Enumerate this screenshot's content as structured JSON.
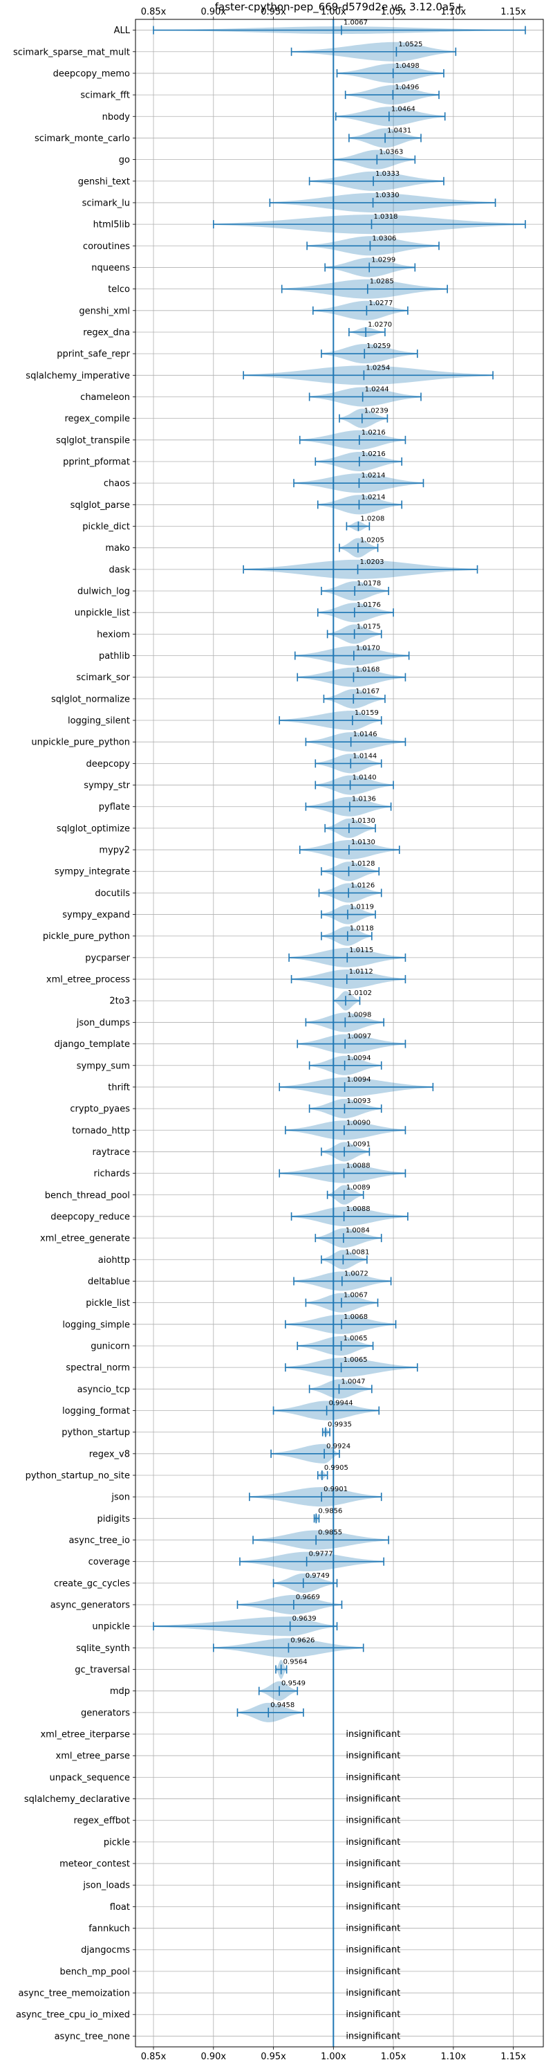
{
  "chart_data": {
    "type": "violin",
    "title": "faster-cpython-pep_669-d579d2e vs. 3.12.0a5+",
    "xlim": [
      0.835,
      1.175
    ],
    "x_ticks": [
      0.85,
      0.9,
      0.95,
      1.0,
      1.05,
      1.1,
      1.15
    ],
    "x_tick_labels": [
      "0.85x",
      "0.90x",
      "0.95x",
      "1.00x",
      "1.05x",
      "1.10x",
      "1.15x"
    ],
    "reference_line": 1.0,
    "grid": true,
    "violin_color": "#1f77b4",
    "insignificant_label": "insignificant",
    "benchmarks": [
      {
        "name": "ALL",
        "label": "1.0067",
        "mean": 1.0067,
        "min": 0.85,
        "max": 1.16,
        "width": 0.35
      },
      {
        "name": "scimark_sparse_mat_mult",
        "label": "1.0525",
        "mean": 1.0525,
        "min": 0.965,
        "max": 1.102,
        "width": 0.9
      },
      {
        "name": "deepcopy_memo",
        "label": "1.0498",
        "mean": 1.0498,
        "min": 1.003,
        "max": 1.092,
        "width": 0.9
      },
      {
        "name": "scimark_fft",
        "label": "1.0496",
        "mean": 1.0496,
        "min": 1.01,
        "max": 1.088,
        "width": 0.9
      },
      {
        "name": "nbody",
        "label": "1.0464",
        "mean": 1.0464,
        "min": 1.002,
        "max": 1.093,
        "width": 0.9
      },
      {
        "name": "scimark_monte_carlo",
        "label": "1.0431",
        "mean": 1.0431,
        "min": 1.013,
        "max": 1.073,
        "width": 0.9
      },
      {
        "name": "go",
        "label": "1.0363",
        "mean": 1.0363,
        "min": 1.0,
        "max": 1.068,
        "width": 0.9
      },
      {
        "name": "genshi_text",
        "label": "1.0333",
        "mean": 1.0333,
        "min": 0.98,
        "max": 1.092,
        "width": 0.9
      },
      {
        "name": "scimark_lu",
        "label": "1.0330",
        "mean": 1.033,
        "min": 0.947,
        "max": 1.135,
        "width": 0.9
      },
      {
        "name": "html5lib",
        "label": "1.0318",
        "mean": 1.0318,
        "min": 0.9,
        "max": 1.16,
        "width": 0.9
      },
      {
        "name": "coroutines",
        "label": "1.0306",
        "mean": 1.0306,
        "min": 0.978,
        "max": 1.088,
        "width": 0.9
      },
      {
        "name": "nqueens",
        "label": "1.0299",
        "mean": 1.0299,
        "min": 0.993,
        "max": 1.068,
        "width": 0.9
      },
      {
        "name": "telco",
        "label": "1.0285",
        "mean": 1.0285,
        "min": 0.957,
        "max": 1.095,
        "width": 0.9
      },
      {
        "name": "genshi_xml",
        "label": "1.0277",
        "mean": 1.0277,
        "min": 0.983,
        "max": 1.062,
        "width": 0.9
      },
      {
        "name": "regex_dna",
        "label": "1.0270",
        "mean": 1.027,
        "min": 1.013,
        "max": 1.043,
        "width": 0.45
      },
      {
        "name": "pprint_safe_repr",
        "label": "1.0259",
        "mean": 1.0259,
        "min": 0.99,
        "max": 1.07,
        "width": 0.9
      },
      {
        "name": "sqlalchemy_imperative",
        "label": "1.0254",
        "mean": 1.0254,
        "min": 0.925,
        "max": 1.133,
        "width": 0.9
      },
      {
        "name": "chameleon",
        "label": "1.0244",
        "mean": 1.0244,
        "min": 0.98,
        "max": 1.073,
        "width": 0.9
      },
      {
        "name": "regex_compile",
        "label": "1.0239",
        "mean": 1.0239,
        "min": 1.005,
        "max": 1.045,
        "width": 0.9
      },
      {
        "name": "sqlglot_transpile",
        "label": "1.0216",
        "mean": 1.0216,
        "min": 0.972,
        "max": 1.06,
        "width": 0.9
      },
      {
        "name": "pprint_pformat",
        "label": "1.0216",
        "mean": 1.0216,
        "min": 0.985,
        "max": 1.057,
        "width": 0.9
      },
      {
        "name": "chaos",
        "label": "1.0214",
        "mean": 1.0214,
        "min": 0.967,
        "max": 1.075,
        "width": 0.9
      },
      {
        "name": "sqlglot_parse",
        "label": "1.0214",
        "mean": 1.0214,
        "min": 0.987,
        "max": 1.057,
        "width": 0.9
      },
      {
        "name": "pickle_dict",
        "label": "1.0208",
        "mean": 1.0208,
        "min": 1.011,
        "max": 1.03,
        "width": 0.45
      },
      {
        "name": "mako",
        "label": "1.0205",
        "mean": 1.0205,
        "min": 1.005,
        "max": 1.037,
        "width": 0.9
      },
      {
        "name": "dask",
        "label": "1.0203",
        "mean": 1.0203,
        "min": 0.925,
        "max": 1.12,
        "width": 0.9
      },
      {
        "name": "dulwich_log",
        "label": "1.0178",
        "mean": 1.0178,
        "min": 0.99,
        "max": 1.046,
        "width": 0.9
      },
      {
        "name": "unpickle_list",
        "label": "1.0176",
        "mean": 1.0176,
        "min": 0.987,
        "max": 1.05,
        "width": 0.9
      },
      {
        "name": "hexiom",
        "label": "1.0175",
        "mean": 1.0175,
        "min": 0.995,
        "max": 1.04,
        "width": 0.9
      },
      {
        "name": "pathlib",
        "label": "1.0170",
        "mean": 1.017,
        "min": 0.968,
        "max": 1.063,
        "width": 0.9
      },
      {
        "name": "scimark_sor",
        "label": "1.0168",
        "mean": 1.0168,
        "min": 0.97,
        "max": 1.06,
        "width": 0.9
      },
      {
        "name": "sqlglot_normalize",
        "label": "1.0167",
        "mean": 1.0167,
        "min": 0.992,
        "max": 1.043,
        "width": 0.9
      },
      {
        "name": "logging_silent",
        "label": "1.0159",
        "mean": 1.0159,
        "min": 0.955,
        "max": 1.04,
        "width": 0.9
      },
      {
        "name": "unpickle_pure_python",
        "label": "1.0146",
        "mean": 1.0146,
        "min": 0.977,
        "max": 1.06,
        "width": 0.9
      },
      {
        "name": "deepcopy",
        "label": "1.0144",
        "mean": 1.0144,
        "min": 0.985,
        "max": 1.04,
        "width": 0.9
      },
      {
        "name": "sympy_str",
        "label": "1.0140",
        "mean": 1.014,
        "min": 0.985,
        "max": 1.05,
        "width": 0.9
      },
      {
        "name": "pyflate",
        "label": "1.0136",
        "mean": 1.0136,
        "min": 0.977,
        "max": 1.048,
        "width": 0.9
      },
      {
        "name": "sqlglot_optimize",
        "label": "1.0130",
        "mean": 1.013,
        "min": 0.993,
        "max": 1.035,
        "width": 0.9
      },
      {
        "name": "mypy2",
        "label": "1.0130",
        "mean": 1.013,
        "min": 0.972,
        "max": 1.055,
        "width": 0.9
      },
      {
        "name": "sympy_integrate",
        "label": "1.0128",
        "mean": 1.0128,
        "min": 0.99,
        "max": 1.038,
        "width": 0.9
      },
      {
        "name": "docutils",
        "label": "1.0126",
        "mean": 1.0126,
        "min": 0.988,
        "max": 1.04,
        "width": 0.9
      },
      {
        "name": "sympy_expand",
        "label": "1.0119",
        "mean": 1.0119,
        "min": 0.99,
        "max": 1.035,
        "width": 0.9
      },
      {
        "name": "pickle_pure_python",
        "label": "1.0118",
        "mean": 1.0118,
        "min": 0.99,
        "max": 1.032,
        "width": 0.9
      },
      {
        "name": "pycparser",
        "label": "1.0115",
        "mean": 1.0115,
        "min": 0.963,
        "max": 1.06,
        "width": 0.9
      },
      {
        "name": "xml_etree_process",
        "label": "1.0112",
        "mean": 1.0112,
        "min": 0.965,
        "max": 1.06,
        "width": 0.9
      },
      {
        "name": "2to3",
        "label": "1.0102",
        "mean": 1.0102,
        "min": 1.0,
        "max": 1.022,
        "width": 0.9
      },
      {
        "name": "json_dumps",
        "label": "1.0098",
        "mean": 1.0098,
        "min": 0.977,
        "max": 1.042,
        "width": 0.9
      },
      {
        "name": "django_template",
        "label": "1.0097",
        "mean": 1.0097,
        "min": 0.97,
        "max": 1.06,
        "width": 0.9
      },
      {
        "name": "sympy_sum",
        "label": "1.0094",
        "mean": 1.0094,
        "min": 0.98,
        "max": 1.04,
        "width": 0.9
      },
      {
        "name": "thrift",
        "label": "1.0094",
        "mean": 1.0094,
        "min": 0.955,
        "max": 1.083,
        "width": 0.9
      },
      {
        "name": "crypto_pyaes",
        "label": "1.0093",
        "mean": 1.0093,
        "min": 0.98,
        "max": 1.04,
        "width": 0.9
      },
      {
        "name": "tornado_http",
        "label": "1.0090",
        "mean": 1.009,
        "min": 0.96,
        "max": 1.06,
        "width": 0.9
      },
      {
        "name": "raytrace",
        "label": "1.0091",
        "mean": 1.0091,
        "min": 0.99,
        "max": 1.03,
        "width": 0.9
      },
      {
        "name": "richards",
        "label": "1.0088",
        "mean": 1.0088,
        "min": 0.955,
        "max": 1.06,
        "width": 0.9
      },
      {
        "name": "bench_thread_pool",
        "label": "1.0089",
        "mean": 1.0089,
        "min": 0.995,
        "max": 1.025,
        "width": 0.9
      },
      {
        "name": "deepcopy_reduce",
        "label": "1.0088",
        "mean": 1.0088,
        "min": 0.965,
        "max": 1.062,
        "width": 0.9
      },
      {
        "name": "xml_etree_generate",
        "label": "1.0084",
        "mean": 1.0084,
        "min": 0.985,
        "max": 1.04,
        "width": 0.9
      },
      {
        "name": "aiohttp",
        "label": "1.0081",
        "mean": 1.0081,
        "min": 0.99,
        "max": 1.028,
        "width": 0.9
      },
      {
        "name": "deltablue",
        "label": "1.0072",
        "mean": 1.0072,
        "min": 0.967,
        "max": 1.048,
        "width": 0.9
      },
      {
        "name": "pickle_list",
        "label": "1.0067",
        "mean": 1.0067,
        "min": 0.977,
        "max": 1.037,
        "width": 0.9
      },
      {
        "name": "logging_simple",
        "label": "1.0068",
        "mean": 1.0068,
        "min": 0.96,
        "max": 1.052,
        "width": 0.9
      },
      {
        "name": "gunicorn",
        "label": "1.0065",
        "mean": 1.0065,
        "min": 0.97,
        "max": 1.033,
        "width": 0.9
      },
      {
        "name": "spectral_norm",
        "label": "1.0065",
        "mean": 1.0065,
        "min": 0.96,
        "max": 1.07,
        "width": 0.9
      },
      {
        "name": "asyncio_tcp",
        "label": "1.0047",
        "mean": 1.0047,
        "min": 0.98,
        "max": 1.032,
        "width": 0.9
      },
      {
        "name": "logging_format",
        "label": "0.9944",
        "mean": 0.9944,
        "min": 0.95,
        "max": 1.038,
        "width": 0.9
      },
      {
        "name": "python_startup",
        "label": "0.9935",
        "mean": 0.9935,
        "min": 0.991,
        "max": 0.997,
        "width": 0.4
      },
      {
        "name": "regex_v8",
        "label": "0.9924",
        "mean": 0.9924,
        "min": 0.948,
        "max": 1.005,
        "width": 0.9
      },
      {
        "name": "python_startup_no_site",
        "label": "0.9905",
        "mean": 0.9905,
        "min": 0.987,
        "max": 0.995,
        "width": 0.4
      },
      {
        "name": "json",
        "label": "0.9901",
        "mean": 0.9901,
        "min": 0.93,
        "max": 1.04,
        "width": 0.9
      },
      {
        "name": "pidigits",
        "label": "0.9856",
        "mean": 0.9856,
        "min": 0.984,
        "max": 0.988,
        "width": 0.45
      },
      {
        "name": "async_tree_io",
        "label": "0.9855",
        "mean": 0.9855,
        "min": 0.933,
        "max": 1.046,
        "width": 0.9
      },
      {
        "name": "coverage",
        "label": "0.9777",
        "mean": 0.9777,
        "min": 0.922,
        "max": 1.042,
        "width": 0.9
      },
      {
        "name": "create_gc_cycles",
        "label": "0.9749",
        "mean": 0.9749,
        "min": 0.95,
        "max": 1.003,
        "width": 0.9
      },
      {
        "name": "async_generators",
        "label": "0.9669",
        "mean": 0.9669,
        "min": 0.92,
        "max": 1.007,
        "width": 0.9
      },
      {
        "name": "unpickle",
        "label": "0.9639",
        "mean": 0.9639,
        "min": 0.85,
        "max": 1.003,
        "width": 0.9
      },
      {
        "name": "sqlite_synth",
        "label": "0.9626",
        "mean": 0.9626,
        "min": 0.9,
        "max": 1.025,
        "width": 0.9
      },
      {
        "name": "gc_traversal",
        "label": "0.9564",
        "mean": 0.9564,
        "min": 0.952,
        "max": 0.961,
        "width": 0.9
      },
      {
        "name": "mdp",
        "label": "0.9549",
        "mean": 0.9549,
        "min": 0.938,
        "max": 0.97,
        "width": 0.9
      },
      {
        "name": "generators",
        "label": "0.9458",
        "mean": 0.9458,
        "min": 0.92,
        "max": 0.975,
        "width": 0.9
      },
      {
        "name": "xml_etree_iterparse",
        "insignificant": true
      },
      {
        "name": "xml_etree_parse",
        "insignificant": true
      },
      {
        "name": "unpack_sequence",
        "insignificant": true
      },
      {
        "name": "sqlalchemy_declarative",
        "insignificant": true
      },
      {
        "name": "regex_effbot",
        "insignificant": true
      },
      {
        "name": "pickle",
        "insignificant": true
      },
      {
        "name": "meteor_contest",
        "insignificant": true
      },
      {
        "name": "json_loads",
        "insignificant": true
      },
      {
        "name": "float",
        "insignificant": true
      },
      {
        "name": "fannkuch",
        "insignificant": true
      },
      {
        "name": "djangocms",
        "insignificant": true
      },
      {
        "name": "bench_mp_pool",
        "insignificant": true
      },
      {
        "name": "async_tree_memoization",
        "insignificant": true
      },
      {
        "name": "async_tree_cpu_io_mixed",
        "insignificant": true
      },
      {
        "name": "async_tree_none",
        "insignificant": true
      }
    ]
  }
}
